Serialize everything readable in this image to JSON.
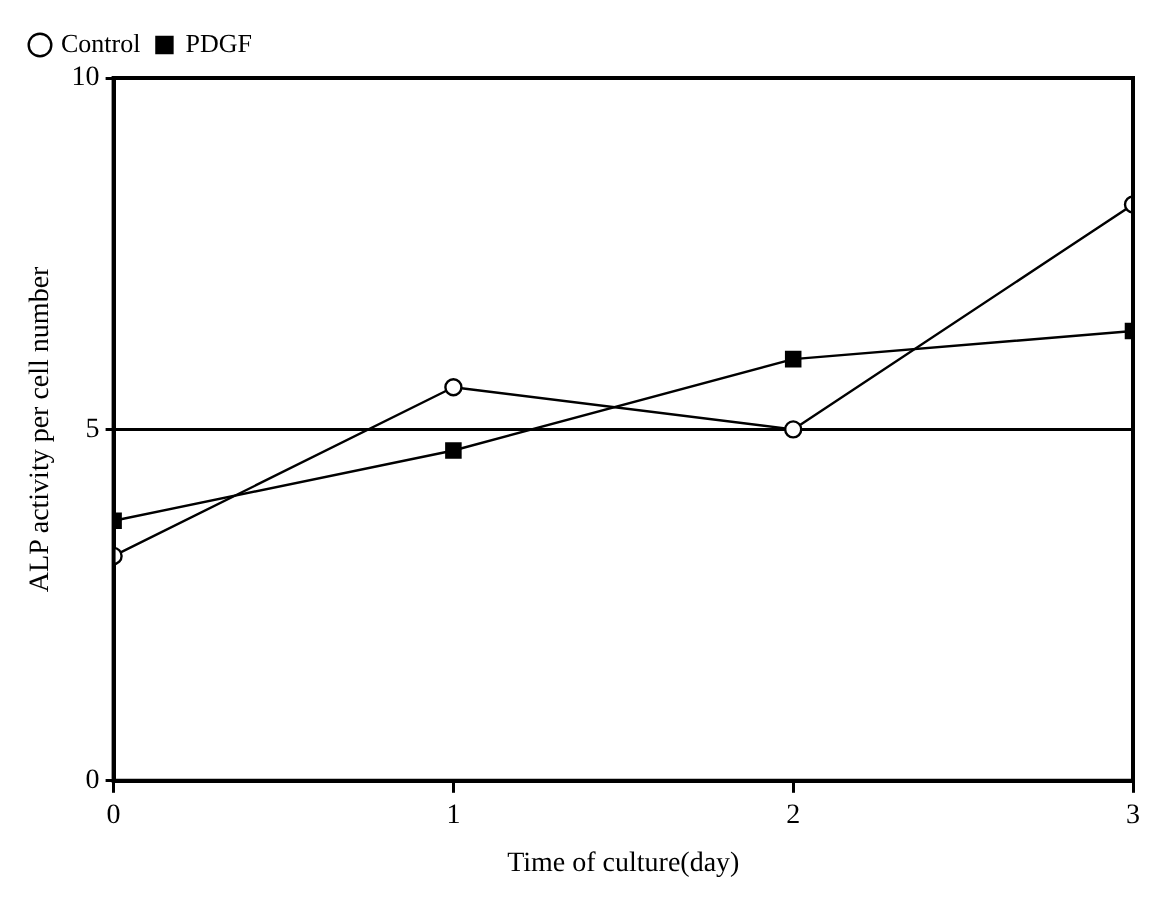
{
  "chart_data": {
    "type": "line",
    "xlabel": "Time of culture(day)",
    "ylabel": "ALP activity per cell number",
    "x": [
      0,
      1,
      2,
      3
    ],
    "series": [
      {
        "name": "Control",
        "color": "#000000",
        "marker": "circle",
        "values": [
          3.2,
          5.6,
          5.0,
          8.2
        ]
      },
      {
        "name": "PDGF",
        "color": "#000000",
        "marker": "square",
        "values": [
          3.7,
          4.7,
          6.0,
          6.4
        ]
      }
    ],
    "xlim": [
      0,
      3
    ],
    "xticks": [
      0,
      1,
      2,
      3
    ],
    "ylim": [
      0,
      10
    ],
    "yticks": [
      0,
      5,
      10
    ],
    "grid": "y",
    "legend": "top left",
    "line_style": "solid"
  }
}
